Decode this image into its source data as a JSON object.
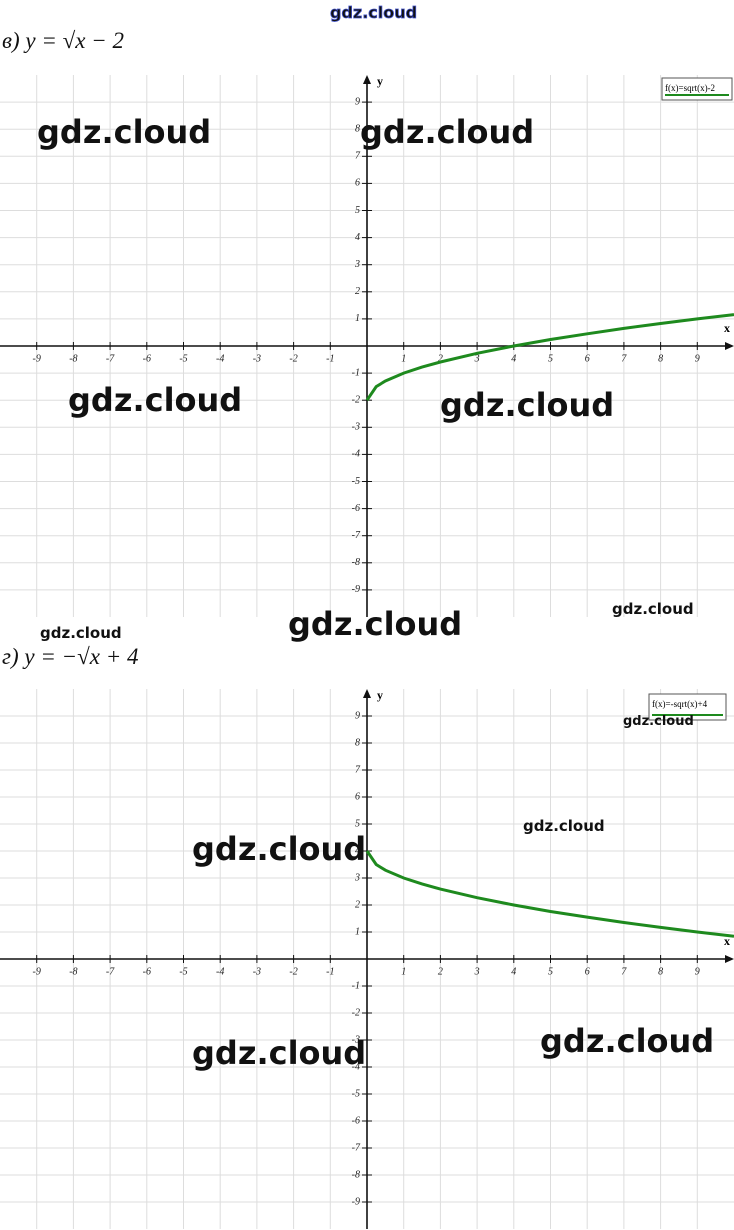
{
  "chart_data": [
    {
      "type": "line",
      "title": "в) y = √x − 2",
      "x_label": "x",
      "y_label": "y",
      "x": [
        0,
        0.25,
        0.5,
        1,
        1.5,
        2,
        3,
        4,
        5,
        6,
        7,
        8,
        9,
        10
      ],
      "series": [
        {
          "name": "f(x)=sqrt(x)-2",
          "color": "#1e8a1e",
          "values": [
            -2,
            -1.5,
            -1.29,
            -1,
            -0.78,
            -0.59,
            -0.27,
            0,
            0.24,
            0.45,
            0.65,
            0.83,
            1,
            1.16
          ]
        }
      ],
      "xlim": [
        -10,
        10
      ],
      "ylim": [
        -10,
        10
      ],
      "xticks": [
        -9,
        -8,
        -7,
        -6,
        -5,
        -4,
        -3,
        -2,
        -1,
        1,
        2,
        3,
        4,
        5,
        6,
        7,
        8,
        9
      ],
      "yticks": [
        -9,
        -8,
        -7,
        -6,
        -5,
        -4,
        -3,
        -2,
        -1,
        1,
        2,
        3,
        4,
        5,
        6,
        7,
        8,
        9
      ],
      "grid": true,
      "legend": "top-right"
    },
    {
      "type": "line",
      "title": "г) y = −√x + 4",
      "x_label": "x",
      "y_label": "y",
      "x": [
        0,
        0.25,
        0.5,
        1,
        1.5,
        2,
        3,
        4,
        5,
        6,
        7,
        8,
        9,
        10
      ],
      "series": [
        {
          "name": "f(x)=-sqrt(x)+4",
          "color": "#1e8a1e",
          "values": [
            4,
            3.5,
            3.29,
            3,
            2.78,
            2.59,
            2.27,
            2,
            1.76,
            1.55,
            1.35,
            1.17,
            1,
            0.84
          ]
        }
      ],
      "xlim": [
        -10,
        10
      ],
      "ylim": [
        -10,
        10
      ],
      "xticks": [
        -9,
        -8,
        -7,
        -6,
        -5,
        -4,
        -3,
        -2,
        -1,
        1,
        2,
        3,
        4,
        5,
        6,
        7,
        8,
        9
      ],
      "yticks": [
        -9,
        -8,
        -7,
        -6,
        -5,
        -4,
        -3,
        -2,
        -1,
        1,
        2,
        3,
        4,
        5,
        6,
        7,
        8,
        9
      ],
      "grid": true,
      "legend": "top-right"
    }
  ],
  "watermarks": [
    "gdz.cloud",
    "gdz.cloud",
    "gdz.cloud",
    "gdz.cloud",
    "gdz.cloud",
    "gdz.cloud",
    "gdz.cloud",
    "gdz.cloud",
    "gdz.cloud",
    "gdz.cloud",
    "gdz.cloud",
    "gdz.cloud",
    "gdz.cloud"
  ]
}
